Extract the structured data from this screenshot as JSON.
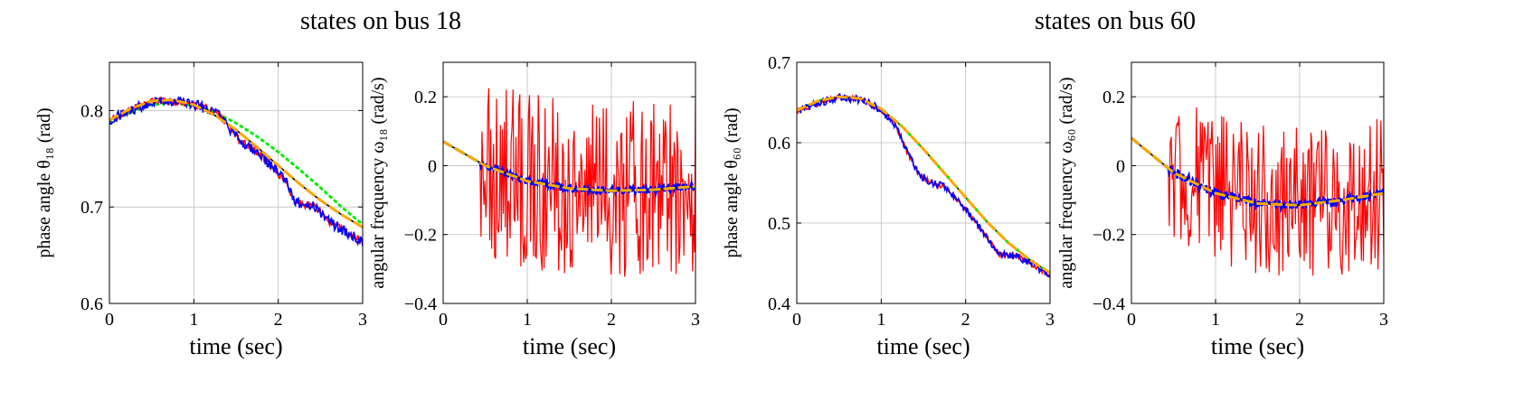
{
  "figure": {
    "group_titles": [
      "states on bus 18",
      "states on bus 60"
    ]
  },
  "colors": {
    "true": "#000000",
    "est_red": "#ff0000",
    "est_blue": "#0000ff",
    "est_orange": "#ffa500",
    "est_green": "#00ee00",
    "grid": "#bfbfbf"
  },
  "chart_data": [
    {
      "type": "line",
      "group": "states on bus 18",
      "xlabel": "time (sec)",
      "ylabel": "phase angle θ₁₈ (rad)",
      "xlim": [
        0,
        3
      ],
      "ylim": [
        0.6,
        0.85
      ],
      "xticks": [
        0,
        1,
        2,
        3
      ],
      "xtick_labels": [
        "0",
        "1",
        "2",
        "3"
      ],
      "yticks": [
        0.6,
        0.7,
        0.8
      ],
      "ytick_labels": [
        "0.6",
        "0.7",
        "0.8"
      ],
      "grid": true,
      "series": [
        {
          "color": "#000000",
          "style": "solid",
          "noise": 0,
          "x": [
            0,
            0.25,
            0.5,
            0.75,
            1.0,
            1.25,
            1.5,
            1.75,
            2.0,
            2.25,
            2.5,
            2.75,
            3.0
          ],
          "y": [
            0.79,
            0.802,
            0.81,
            0.811,
            0.806,
            0.795,
            0.78,
            0.762,
            0.743,
            0.724,
            0.707,
            0.692,
            0.679
          ]
        },
        {
          "color": "#00ee00",
          "style": "dotted",
          "noise": 0,
          "x": [
            0,
            0.25,
            0.5,
            0.75,
            1.0,
            1.25,
            1.5,
            1.75,
            2.0,
            2.25,
            2.5,
            2.75,
            3.0
          ],
          "y": [
            0.788,
            0.798,
            0.806,
            0.808,
            0.805,
            0.798,
            0.787,
            0.773,
            0.757,
            0.739,
            0.72,
            0.7,
            0.682
          ]
        },
        {
          "color": "#ff0000",
          "style": "solid",
          "noise": 0.004,
          "x": [
            0,
            0.5,
            0.7,
            0.9,
            1.1,
            1.3,
            1.5,
            1.7,
            1.9,
            2.1,
            2.2,
            2.3,
            2.45,
            2.6,
            2.8,
            3.0
          ],
          "y": [
            0.79,
            0.81,
            0.81,
            0.808,
            0.804,
            0.795,
            0.772,
            0.76,
            0.745,
            0.725,
            0.705,
            0.703,
            0.7,
            0.685,
            0.675,
            0.663
          ]
        },
        {
          "color": "#0000ff",
          "style": "solid",
          "noise": 0.006,
          "x": [
            0,
            0.5,
            0.7,
            0.9,
            1.1,
            1.3,
            1.5,
            1.7,
            1.9,
            2.1,
            2.2,
            2.3,
            2.45,
            2.6,
            2.8,
            3.0
          ],
          "y": [
            0.79,
            0.81,
            0.81,
            0.808,
            0.804,
            0.795,
            0.772,
            0.76,
            0.745,
            0.725,
            0.705,
            0.703,
            0.7,
            0.685,
            0.675,
            0.663
          ]
        },
        {
          "color": "#ffa500",
          "style": "dashed",
          "noise": 0,
          "x": [
            0,
            0.25,
            0.5,
            0.75,
            1.0,
            1.25,
            1.5,
            1.75,
            2.0,
            2.25,
            2.5,
            2.75,
            3.0
          ],
          "y": [
            0.79,
            0.802,
            0.81,
            0.811,
            0.806,
            0.795,
            0.78,
            0.762,
            0.743,
            0.724,
            0.707,
            0.692,
            0.679
          ]
        }
      ]
    },
    {
      "type": "line",
      "group": "states on bus 18",
      "xlabel": "time (sec)",
      "ylabel": "angular frequency ω₁₈ (rad/s)",
      "xlim": [
        0,
        3
      ],
      "ylim": [
        -0.4,
        0.3
      ],
      "xticks": [
        0,
        1,
        2,
        3
      ],
      "xtick_labels": [
        "0",
        "1",
        "2",
        "3"
      ],
      "yticks": [
        -0.4,
        -0.2,
        0,
        0.2
      ],
      "ytick_labels": [
        "−0.4",
        "−0.2",
        "0",
        "0.2"
      ],
      "grid": true,
      "series": [
        {
          "color": "#ff0000",
          "style": "solid",
          "noise": 0.26,
          "x": [
            0,
            0.5,
            1.0,
            1.5,
            2.0,
            2.5,
            3.0
          ],
          "y": [
            0.07,
            0.0,
            -0.04,
            -0.06,
            -0.07,
            -0.06,
            -0.05
          ]
        },
        {
          "color": "#000000",
          "style": "solid",
          "noise": 0,
          "x": [
            0,
            0.5,
            1.0,
            1.5,
            2.0,
            2.5,
            3.0
          ],
          "y": [
            0.07,
            0.0,
            -0.045,
            -0.066,
            -0.073,
            -0.07,
            -0.06
          ]
        },
        {
          "color": "#0000ff",
          "style": "dashed",
          "noise": 0.01,
          "x": [
            0,
            0.5,
            1.0,
            1.5,
            2.0,
            2.5,
            3.0
          ],
          "y": [
            0.07,
            0.0,
            -0.045,
            -0.066,
            -0.073,
            -0.07,
            -0.06
          ]
        },
        {
          "color": "#00ee00",
          "style": "dashed",
          "noise": 0,
          "x": [
            0,
            0.5,
            1.0,
            1.5,
            2.0,
            2.5,
            3.0
          ],
          "y": [
            0.07,
            0.0,
            -0.045,
            -0.066,
            -0.073,
            -0.07,
            -0.06
          ]
        },
        {
          "color": "#ffa500",
          "style": "dashed",
          "noise": 0,
          "x": [
            0,
            0.5,
            1.0,
            1.5,
            2.0,
            2.5,
            3.0
          ],
          "y": [
            0.07,
            0.0,
            -0.045,
            -0.066,
            -0.073,
            -0.07,
            -0.06
          ]
        }
      ]
    },
    {
      "type": "line",
      "group": "states on bus 60",
      "xlabel": "time (sec)",
      "ylabel": "phase angle θ₆₀ (rad)",
      "xlim": [
        0,
        3
      ],
      "ylim": [
        0.4,
        0.7
      ],
      "xticks": [
        0,
        1,
        2,
        3
      ],
      "xtick_labels": [
        "0",
        "1",
        "2",
        "3"
      ],
      "yticks": [
        0.4,
        0.5,
        0.6,
        0.7
      ],
      "ytick_labels": [
        "0.4",
        "0.5",
        "0.6",
        "0.7"
      ],
      "grid": true,
      "series": [
        {
          "color": "#000000",
          "style": "solid",
          "noise": 0,
          "x": [
            0,
            0.25,
            0.5,
            0.75,
            1.0,
            1.25,
            1.5,
            1.75,
            2.0,
            2.25,
            2.5,
            2.75,
            3.0
          ],
          "y": [
            0.64,
            0.652,
            0.657,
            0.655,
            0.642,
            0.62,
            0.592,
            0.562,
            0.532,
            0.502,
            0.476,
            0.455,
            0.438
          ]
        },
        {
          "color": "#00ee00",
          "style": "dotted",
          "noise": 0,
          "x": [
            0,
            0.25,
            0.5,
            0.75,
            1.0,
            1.25,
            1.5,
            1.75,
            2.0,
            2.25,
            2.5,
            2.75,
            3.0
          ],
          "y": [
            0.64,
            0.652,
            0.657,
            0.655,
            0.642,
            0.62,
            0.592,
            0.562,
            0.532,
            0.502,
            0.476,
            0.455,
            0.438
          ]
        },
        {
          "color": "#ff0000",
          "style": "solid",
          "noise": 0.003,
          "x": [
            0,
            0.5,
            0.8,
            1.0,
            1.15,
            1.3,
            1.45,
            1.6,
            1.75,
            1.9,
            2.05,
            2.2,
            2.4,
            2.6,
            2.8,
            3.0
          ],
          "y": [
            0.64,
            0.657,
            0.653,
            0.64,
            0.625,
            0.59,
            0.56,
            0.55,
            0.545,
            0.53,
            0.51,
            0.49,
            0.46,
            0.46,
            0.448,
            0.435
          ]
        },
        {
          "color": "#0000ff",
          "style": "solid",
          "noise": 0.005,
          "x": [
            0,
            0.5,
            0.8,
            1.0,
            1.15,
            1.3,
            1.45,
            1.6,
            1.75,
            1.9,
            2.05,
            2.2,
            2.4,
            2.6,
            2.8,
            3.0
          ],
          "y": [
            0.64,
            0.657,
            0.653,
            0.64,
            0.625,
            0.59,
            0.56,
            0.55,
            0.545,
            0.53,
            0.51,
            0.49,
            0.46,
            0.46,
            0.448,
            0.435
          ]
        },
        {
          "color": "#ffa500",
          "style": "dashed",
          "noise": 0,
          "x": [
            0,
            0.25,
            0.5,
            0.75,
            1.0,
            1.25,
            1.5,
            1.75,
            2.0,
            2.25,
            2.5,
            2.75,
            3.0
          ],
          "y": [
            0.64,
            0.652,
            0.657,
            0.655,
            0.642,
            0.62,
            0.592,
            0.562,
            0.532,
            0.502,
            0.476,
            0.455,
            0.438
          ]
        }
      ]
    },
    {
      "type": "line",
      "group": "states on bus 60",
      "xlabel": "time (sec)",
      "ylabel": "angular frequency ω₆₀ (rad/s)",
      "xlim": [
        0,
        3
      ],
      "ylim": [
        -0.4,
        0.3
      ],
      "xticks": [
        0,
        1,
        2,
        3
      ],
      "xtick_labels": [
        "0",
        "1",
        "2",
        "3"
      ],
      "yticks": [
        -0.4,
        -0.2,
        0,
        0.2
      ],
      "ytick_labels": [
        "−0.4",
        "−0.2",
        "0",
        "0.2"
      ],
      "grid": true,
      "series": [
        {
          "color": "#ff0000",
          "style": "solid",
          "noise": 0.22,
          "x": [
            0,
            0.5,
            1.0,
            1.5,
            2.0,
            2.5,
            3.0
          ],
          "y": [
            0.08,
            -0.02,
            -0.07,
            -0.1,
            -0.11,
            -0.1,
            -0.08
          ]
        },
        {
          "color": "#000000",
          "style": "solid",
          "noise": 0,
          "x": [
            0,
            0.5,
            1.0,
            1.5,
            2.0,
            2.5,
            3.0
          ],
          "y": [
            0.08,
            -0.02,
            -0.08,
            -0.11,
            -0.115,
            -0.1,
            -0.08
          ]
        },
        {
          "color": "#0000ff",
          "style": "dashed",
          "noise": 0.012,
          "x": [
            0,
            0.5,
            1.0,
            1.5,
            2.0,
            2.5,
            3.0
          ],
          "y": [
            0.08,
            -0.02,
            -0.08,
            -0.11,
            -0.115,
            -0.1,
            -0.08
          ]
        },
        {
          "color": "#00ee00",
          "style": "dashed",
          "noise": 0,
          "x": [
            0,
            0.5,
            1.0,
            1.5,
            2.0,
            2.5,
            3.0
          ],
          "y": [
            0.08,
            -0.02,
            -0.08,
            -0.11,
            -0.115,
            -0.1,
            -0.08
          ]
        },
        {
          "color": "#ffa500",
          "style": "dashed",
          "noise": 0,
          "x": [
            0,
            0.5,
            1.0,
            1.5,
            2.0,
            2.5,
            3.0
          ],
          "y": [
            0.08,
            -0.02,
            -0.08,
            -0.11,
            -0.115,
            -0.1,
            -0.08
          ]
        }
      ]
    }
  ]
}
